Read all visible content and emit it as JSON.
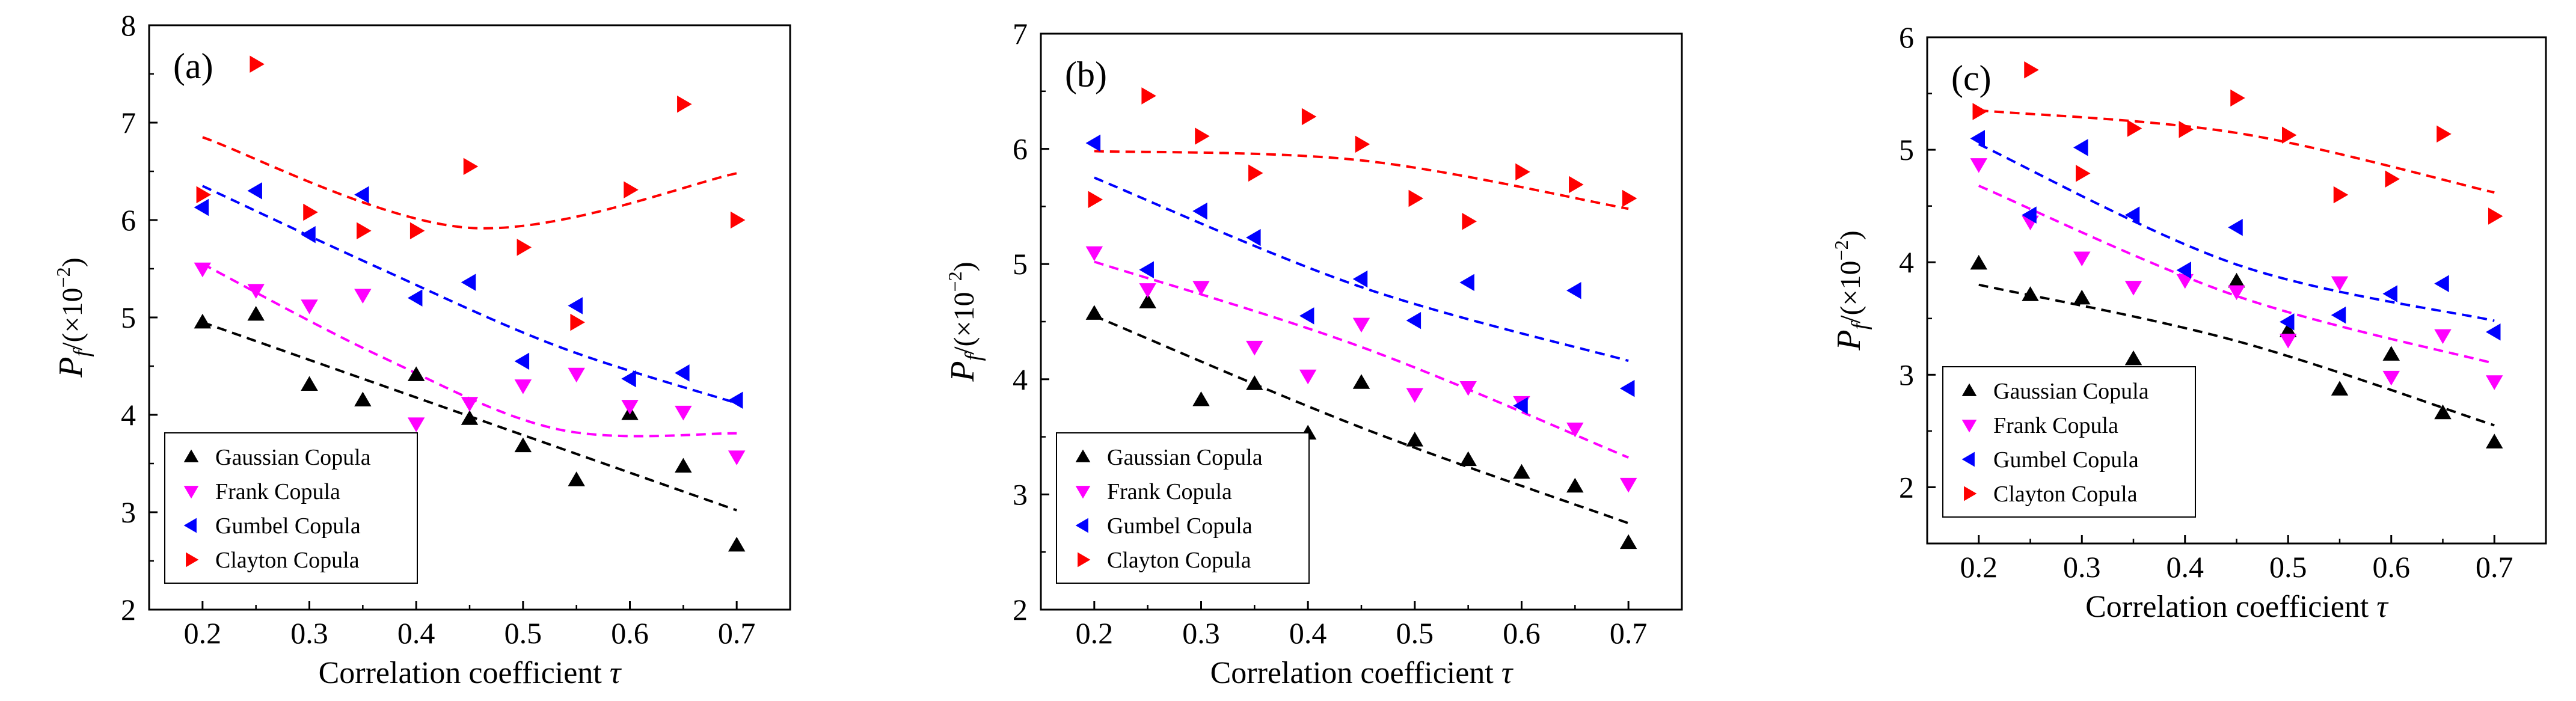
{
  "figure": {
    "panels": [
      "(a)",
      "(b)",
      "(c)"
    ]
  },
  "colors": {
    "Gaussian Copula": "#000000",
    "Frank Copula": "#ff00ff",
    "Gumbel Copula": "#0000ff",
    "Clayton Copula": "#ff0000"
  },
  "chart_data": [
    {
      "type": "scatter",
      "panel_label": "(a)",
      "xlabel": "Correlation coefficient",
      "xlabel_symbol": "τ",
      "ylabel_main": "P",
      "ylabel_sub": "f",
      "ylabel_unit_open": "/(×10",
      "ylabel_unit_exp": "−2",
      "ylabel_unit_close": ")",
      "xlim": [
        0.15,
        0.75
      ],
      "ylim": [
        2,
        8
      ],
      "xticks": [
        "0.2",
        "0.3",
        "0.4",
        "0.5",
        "0.6",
        "0.7"
      ],
      "xtick_values": [
        0.2,
        0.3,
        0.4,
        0.5,
        0.6,
        0.7
      ],
      "yticks": [
        "2",
        "3",
        "4",
        "5",
        "6",
        "7",
        "8"
      ],
      "ytick_values": [
        2,
        3,
        4,
        5,
        6,
        7,
        8
      ],
      "legend_position": "bottom-left",
      "x": [
        0.2,
        0.25,
        0.3,
        0.35,
        0.4,
        0.45,
        0.5,
        0.55,
        0.6,
        0.65,
        0.7
      ],
      "series": [
        {
          "name": "Gaussian Copula",
          "marker": "triangle-up",
          "values": [
            4.95,
            5.03,
            4.31,
            4.15,
            4.41,
            3.96,
            3.68,
            3.33,
            4.01,
            3.47,
            2.66
          ],
          "fit": [
            4.95,
            3.02
          ]
        },
        {
          "name": "Frank Copula",
          "marker": "triangle-down",
          "values": [
            5.5,
            5.28,
            5.12,
            5.23,
            3.91,
            4.12,
            4.3,
            4.42,
            4.09,
            4.03,
            3.57
          ],
          "fit": [
            5.55,
            4.6,
            3.85,
            3.81
          ]
        },
        {
          "name": "Gumbel Copula",
          "marker": "triangle-left",
          "values": [
            6.13,
            6.3,
            5.85,
            6.26,
            5.2,
            5.36,
            4.55,
            5.12,
            4.37,
            4.43,
            4.15
          ],
          "fit": [
            6.35,
            5.5,
            4.7,
            4.12
          ]
        },
        {
          "name": "Clayton Copula",
          "marker": "triangle-right",
          "values": [
            6.26,
            7.6,
            6.08,
            5.89,
            5.89,
            6.55,
            5.72,
            4.95,
            6.31,
            7.19,
            6.0
          ],
          "fit": [
            6.85,
            5.92,
            6.48
          ]
        }
      ]
    },
    {
      "type": "scatter",
      "panel_label": "(b)",
      "xlabel": "Correlation coefficient",
      "xlabel_symbol": "τ",
      "ylabel_main": "P",
      "ylabel_sub": "f",
      "ylabel_unit_open": "/(×10",
      "ylabel_unit_exp": "−2",
      "ylabel_unit_close": ")",
      "xlim": [
        0.15,
        0.75
      ],
      "ylim": [
        2,
        7
      ],
      "xticks": [
        "0.2",
        "0.3",
        "0.4",
        "0.5",
        "0.6",
        "0.7"
      ],
      "xtick_values": [
        0.2,
        0.3,
        0.4,
        0.5,
        0.6,
        0.7
      ],
      "yticks": [
        "2",
        "3",
        "4",
        "5",
        "6",
        "7"
      ],
      "ytick_values": [
        2,
        3,
        4,
        5,
        6,
        7
      ],
      "legend_position": "bottom-left",
      "x": [
        0.2,
        0.25,
        0.3,
        0.35,
        0.4,
        0.45,
        0.5,
        0.55,
        0.6,
        0.65,
        0.7
      ],
      "series": [
        {
          "name": "Gaussian Copula",
          "marker": "triangle-up",
          "values": [
            4.57,
            4.67,
            3.82,
            3.96,
            3.53,
            3.97,
            3.47,
            3.3,
            3.19,
            3.07,
            2.58
          ],
          "fit": [
            4.55,
            3.58,
            2.75
          ]
        },
        {
          "name": "Frank Copula",
          "marker": "triangle-down",
          "values": [
            5.1,
            4.78,
            4.8,
            4.28,
            4.03,
            4.48,
            3.87,
            3.93,
            3.8,
            3.57,
            3.09
          ],
          "fit": [
            5.02,
            4.28,
            3.32
          ]
        },
        {
          "name": "Gumbel Copula",
          "marker": "triangle-left",
          "values": [
            6.05,
            4.95,
            5.46,
            5.23,
            4.55,
            4.87,
            4.51,
            4.84,
            3.77,
            4.77,
            3.92
          ],
          "fit": [
            5.75,
            4.8,
            4.16
          ]
        },
        {
          "name": "Clayton Copula",
          "marker": "triangle-right",
          "values": [
            5.56,
            6.46,
            6.11,
            5.79,
            6.28,
            6.04,
            5.57,
            5.37,
            5.8,
            5.69,
            5.57
          ],
          "fit": [
            5.98,
            5.9,
            5.48
          ]
        }
      ]
    },
    {
      "type": "scatter",
      "panel_label": "(c)",
      "xlabel": "Correlation coefficient",
      "xlabel_symbol": "τ",
      "ylabel_main": "P",
      "ylabel_sub": "f",
      "ylabel_unit_open": "/(×10",
      "ylabel_unit_exp": "−2",
      "ylabel_unit_close": ")",
      "xlim": [
        0.15,
        0.75
      ],
      "ylim": [
        1.5,
        6
      ],
      "xticks": [
        "0.2",
        "0.3",
        "0.4",
        "0.5",
        "0.6",
        "0.7"
      ],
      "xtick_values": [
        0.2,
        0.3,
        0.4,
        0.5,
        0.6,
        0.7
      ],
      "yticks": [
        "2",
        "3",
        "4",
        "5",
        "6"
      ],
      "ytick_values": [
        2,
        3,
        4,
        5,
        6
      ],
      "legend_position": "bottom-left",
      "x": [
        0.2,
        0.25,
        0.3,
        0.35,
        0.4,
        0.45,
        0.5,
        0.55,
        0.6,
        0.65,
        0.7
      ],
      "series": [
        {
          "name": "Gaussian Copula",
          "marker": "triangle-up",
          "values": [
            3.99,
            3.71,
            3.68,
            3.14,
            2.99,
            3.83,
            3.39,
            2.87,
            3.18,
            2.66,
            2.4
          ],
          "fit": [
            3.8,
            3.3,
            2.55
          ]
        },
        {
          "name": "Frank Copula",
          "marker": "triangle-down",
          "values": [
            4.87,
            4.36,
            4.04,
            3.78,
            3.84,
            3.74,
            3.31,
            3.82,
            2.98,
            3.35,
            2.94
          ],
          "fit": [
            4.68,
            3.7,
            3.1
          ]
        },
        {
          "name": "Gumbel Copula",
          "marker": "triangle-left",
          "values": [
            5.1,
            4.42,
            5.02,
            4.42,
            3.93,
            4.31,
            3.47,
            3.53,
            3.72,
            3.81,
            3.38
          ],
          "fit": [
            5.05,
            3.98,
            3.48
          ]
        },
        {
          "name": "Clayton Copula",
          "marker": "triangle-right",
          "values": [
            5.34,
            5.71,
            4.79,
            5.19,
            5.18,
            5.46,
            5.13,
            4.6,
            4.74,
            5.14,
            4.41
          ],
          "fit": [
            5.35,
            5.15,
            4.62
          ]
        }
      ]
    }
  ]
}
